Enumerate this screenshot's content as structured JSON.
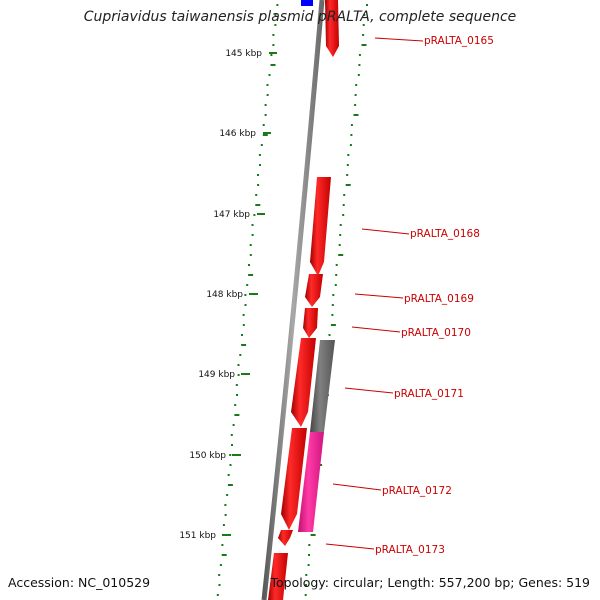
{
  "title": "Cupriavidus taiwanensis plasmid pRALTA, complete sequence",
  "footer": {
    "accession": "Accession: NC_010529",
    "topology": "Topology: circular; Length: 557,200 bp; Genes: 519"
  },
  "scale_ticks": [
    "145 kbp",
    "146 kbp",
    "147 kbp",
    "148 kbp",
    "149 kbp",
    "150 kbp",
    "151 kbp"
  ],
  "gene_labels": [
    "pRALTA_0165",
    "pRALTA_0168",
    "pRALTA_0169",
    "pRALTA_0170",
    "pRALTA_0171",
    "pRALTA_0172",
    "pRALTA_0173"
  ],
  "colors": {
    "backbone": "#808080",
    "gene_red": "#ff0000",
    "gene_gray": "#666666",
    "gene_pink": "#ff1493",
    "gene_blue": "#0000ff",
    "gc_dots": "#1a7a1a",
    "label_red": "#cc0000"
  }
}
